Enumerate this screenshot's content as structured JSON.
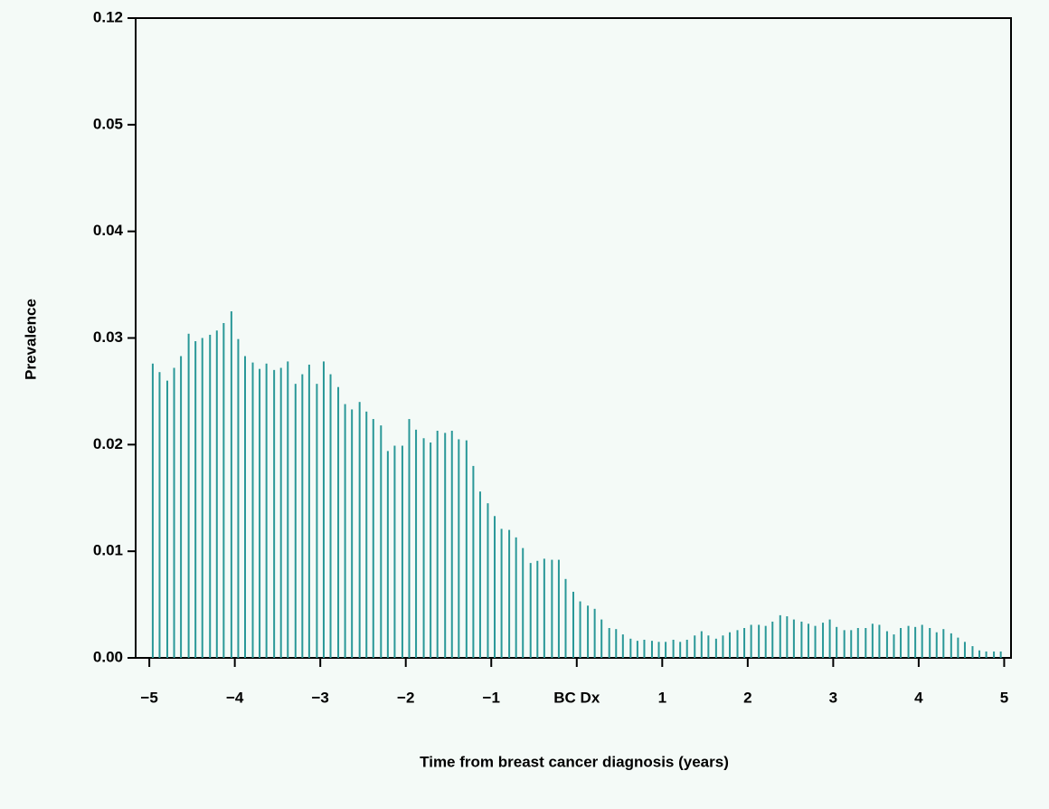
{
  "chart_data": {
    "type": "bar",
    "x_label": "Time from breast cancer diagnosis (years)",
    "y_label": "Prevalence",
    "color": "#2a9898",
    "x": [
      -4.96,
      -4.88,
      -4.79,
      -4.71,
      -4.63,
      -4.54,
      -4.46,
      -4.38,
      -4.29,
      -4.21,
      -4.13,
      -4.04,
      -3.96,
      -3.88,
      -3.79,
      -3.71,
      -3.63,
      -3.54,
      -3.46,
      -3.38,
      -3.29,
      -3.21,
      -3.13,
      -3.04,
      -2.96,
      -2.88,
      -2.79,
      -2.71,
      -2.63,
      -2.54,
      -2.46,
      -2.38,
      -2.29,
      -2.21,
      -2.13,
      -2.04,
      -1.96,
      -1.88,
      -1.79,
      -1.71,
      -1.63,
      -1.54,
      -1.46,
      -1.38,
      -1.29,
      -1.21,
      -1.13,
      -1.04,
      -0.96,
      -0.88,
      -0.79,
      -0.71,
      -0.63,
      -0.54,
      -0.46,
      -0.38,
      -0.29,
      -0.21,
      -0.13,
      -0.04,
      0.04,
      0.13,
      0.21,
      0.29,
      0.38,
      0.46,
      0.54,
      0.63,
      0.71,
      0.79,
      0.88,
      0.96,
      1.04,
      1.13,
      1.21,
      1.29,
      1.38,
      1.46,
      1.54,
      1.63,
      1.71,
      1.79,
      1.88,
      1.96,
      2.04,
      2.13,
      2.21,
      2.29,
      2.38,
      2.46,
      2.54,
      2.63,
      2.71,
      2.79,
      2.88,
      2.96,
      3.04,
      3.13,
      3.21,
      3.29,
      3.38,
      3.46,
      3.54,
      3.63,
      3.71,
      3.79,
      3.88,
      3.96,
      4.04,
      4.13,
      4.21,
      4.29,
      4.38,
      4.46,
      4.54,
      4.63,
      4.71,
      4.79,
      4.88,
      4.96
    ],
    "values": [
      0.0276,
      0.0268,
      0.026,
      0.0272,
      0.0283,
      0.0304,
      0.0297,
      0.03,
      0.0303,
      0.0307,
      0.0314,
      0.0325,
      0.0299,
      0.0283,
      0.0277,
      0.0271,
      0.0276,
      0.027,
      0.0272,
      0.0278,
      0.0257,
      0.0266,
      0.0275,
      0.0257,
      0.0278,
      0.0266,
      0.0254,
      0.0238,
      0.0233,
      0.024,
      0.0231,
      0.0224,
      0.0218,
      0.0194,
      0.0199,
      0.0199,
      0.0224,
      0.0214,
      0.0206,
      0.0202,
      0.0213,
      0.0211,
      0.0213,
      0.0205,
      0.0204,
      0.018,
      0.0156,
      0.0145,
      0.0133,
      0.0121,
      0.012,
      0.0113,
      0.0103,
      0.0089,
      0.0091,
      0.0093,
      0.0092,
      0.0092,
      0.0074,
      0.0062,
      0.0053,
      0.0049,
      0.0046,
      0.0036,
      0.0028,
      0.0027,
      0.0022,
      0.0018,
      0.0016,
      0.0017,
      0.0016,
      0.0015,
      0.0015,
      0.0017,
      0.0015,
      0.0017,
      0.0021,
      0.0025,
      0.0021,
      0.0018,
      0.0021,
      0.0024,
      0.0026,
      0.0028,
      0.0031,
      0.0031,
      0.003,
      0.0034,
      0.004,
      0.0039,
      0.0036,
      0.0034,
      0.0032,
      0.003,
      0.0033,
      0.0036,
      0.0029,
      0.0026,
      0.0026,
      0.0028,
      0.0028,
      0.0032,
      0.0031,
      0.0025,
      0.0022,
      0.0028,
      0.003,
      0.0029,
      0.0031,
      0.0028,
      0.0024,
      0.0027,
      0.0023,
      0.0019,
      0.0015,
      0.0011,
      0.0007,
      0.0006,
      0.0006,
      0.0006
    ],
    "xlim": [
      -5.16,
      5.08
    ],
    "xticks": [
      {
        "value": -5,
        "label": "−5"
      },
      {
        "value": -4,
        "label": "−4"
      },
      {
        "value": -3,
        "label": "−3"
      },
      {
        "value": -2,
        "label": "−2"
      },
      {
        "value": -1,
        "label": "−1"
      },
      {
        "value": 0,
        "label": "BC Dx"
      },
      1,
      2,
      3,
      4,
      5
    ],
    "ylim": [
      0,
      0.12
    ],
    "yticks": [
      {
        "value": 0,
        "label": "0.00"
      },
      0.01,
      0.02,
      0.03,
      0.04,
      0.05,
      0.12
    ]
  }
}
